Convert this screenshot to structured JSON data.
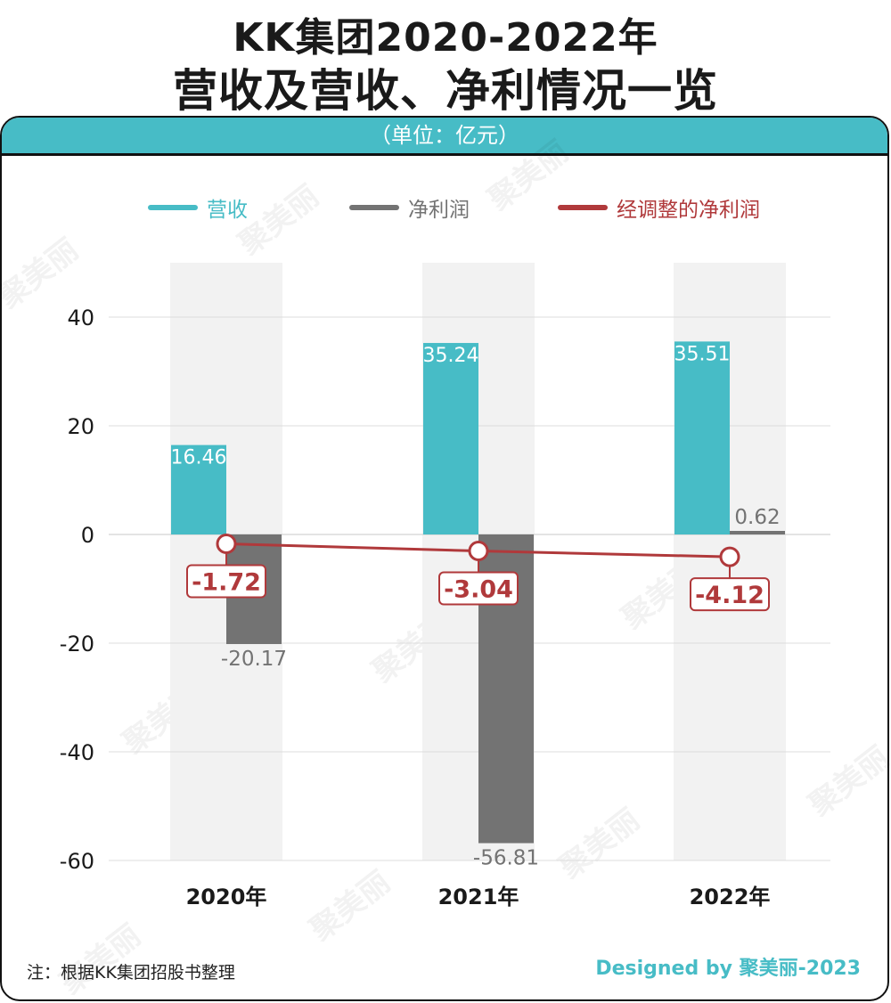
{
  "title": {
    "line1": "KK集团2020-2022年",
    "line2": "营收及营收、净利情况一览"
  },
  "unit": "（单位：亿元）",
  "legend": [
    {
      "label": "营收",
      "color": "#47bcc6"
    },
    {
      "label": "净利润",
      "color": "#737373"
    },
    {
      "label": "经调整的净利润",
      "color": "#b0393b"
    }
  ],
  "note": "注：根据KK集团招股书整理",
  "credit": "Designed by 聚美丽-2023",
  "watermark": "聚美丽",
  "chart_data": {
    "type": "bar",
    "categories": [
      "2020年",
      "2021年",
      "2022年"
    ],
    "series": [
      {
        "name": "营收",
        "kind": "bar",
        "color": "#47bcc6",
        "values": [
          16.46,
          35.24,
          35.51
        ],
        "labels": [
          "16.46",
          "35.24",
          "35.51"
        ]
      },
      {
        "name": "净利润",
        "kind": "bar",
        "color": "#737373",
        "values": [
          -20.17,
          -56.81,
          0.62
        ],
        "labels": [
          "-20.17",
          "-56.81",
          "0.62"
        ]
      },
      {
        "name": "经调整的净利润",
        "kind": "line",
        "color": "#b0393b",
        "values": [
          -1.72,
          -3.04,
          -4.12
        ],
        "labels": [
          "-1.72",
          "-3.04",
          "-4.12"
        ]
      }
    ],
    "yticks": [
      40,
      20,
      0,
      -20,
      -40,
      -60
    ],
    "ylim": [
      -60,
      50
    ],
    "grid": true,
    "legend_position": "top"
  }
}
